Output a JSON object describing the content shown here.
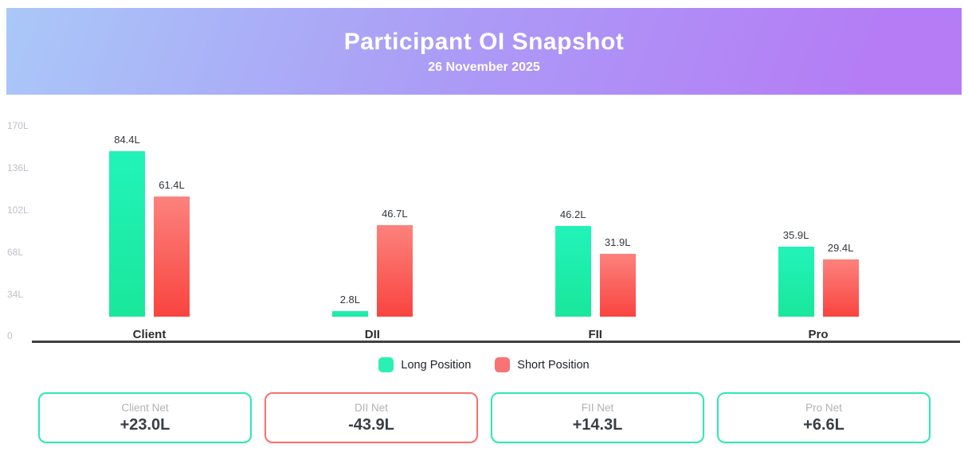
{
  "header": {
    "title": "Participant OI Snapshot",
    "date": "26 November 2025"
  },
  "chart_data": {
    "type": "bar",
    "title": "Participant OI Snapshot",
    "subtitle": "26 November 2025",
    "categories": [
      "Client",
      "DII",
      "FII",
      "Pro"
    ],
    "series": [
      {
        "name": "Long Position",
        "values": [
          84.4,
          2.8,
          46.2,
          35.9
        ],
        "labels": [
          "84.4L",
          "2.8L",
          "46.2L",
          "35.9L"
        ],
        "color_top": "#22f3b9",
        "color_bottom": "#19e79b",
        "legend_color": "#2bf0b4"
      },
      {
        "name": "Short Position",
        "values": [
          61.4,
          46.7,
          31.9,
          29.4
        ],
        "labels": [
          "61.4L",
          "46.7L",
          "31.9L",
          "29.4L"
        ],
        "color_top": "#fc827d",
        "color_bottom": "#f9443f",
        "legend_color": "#f87474"
      }
    ],
    "unit": "L",
    "y_ticks": [
      "0",
      "34L",
      "68L",
      "102L",
      "136L",
      "170L"
    ],
    "ylim": [
      0,
      170
    ],
    "grid": false,
    "legend_position": "bottom"
  },
  "cards": [
    {
      "label": "Client Net",
      "value": "+23.0L",
      "accent": "#2de9b7"
    },
    {
      "label": "DII Net",
      "value": "-43.9L",
      "accent": "#f87070"
    },
    {
      "label": "FII Net",
      "value": "+14.3L",
      "accent": "#2de9b7"
    },
    {
      "label": "Pro Net",
      "value": "+6.6L",
      "accent": "#2de9b7"
    }
  ]
}
